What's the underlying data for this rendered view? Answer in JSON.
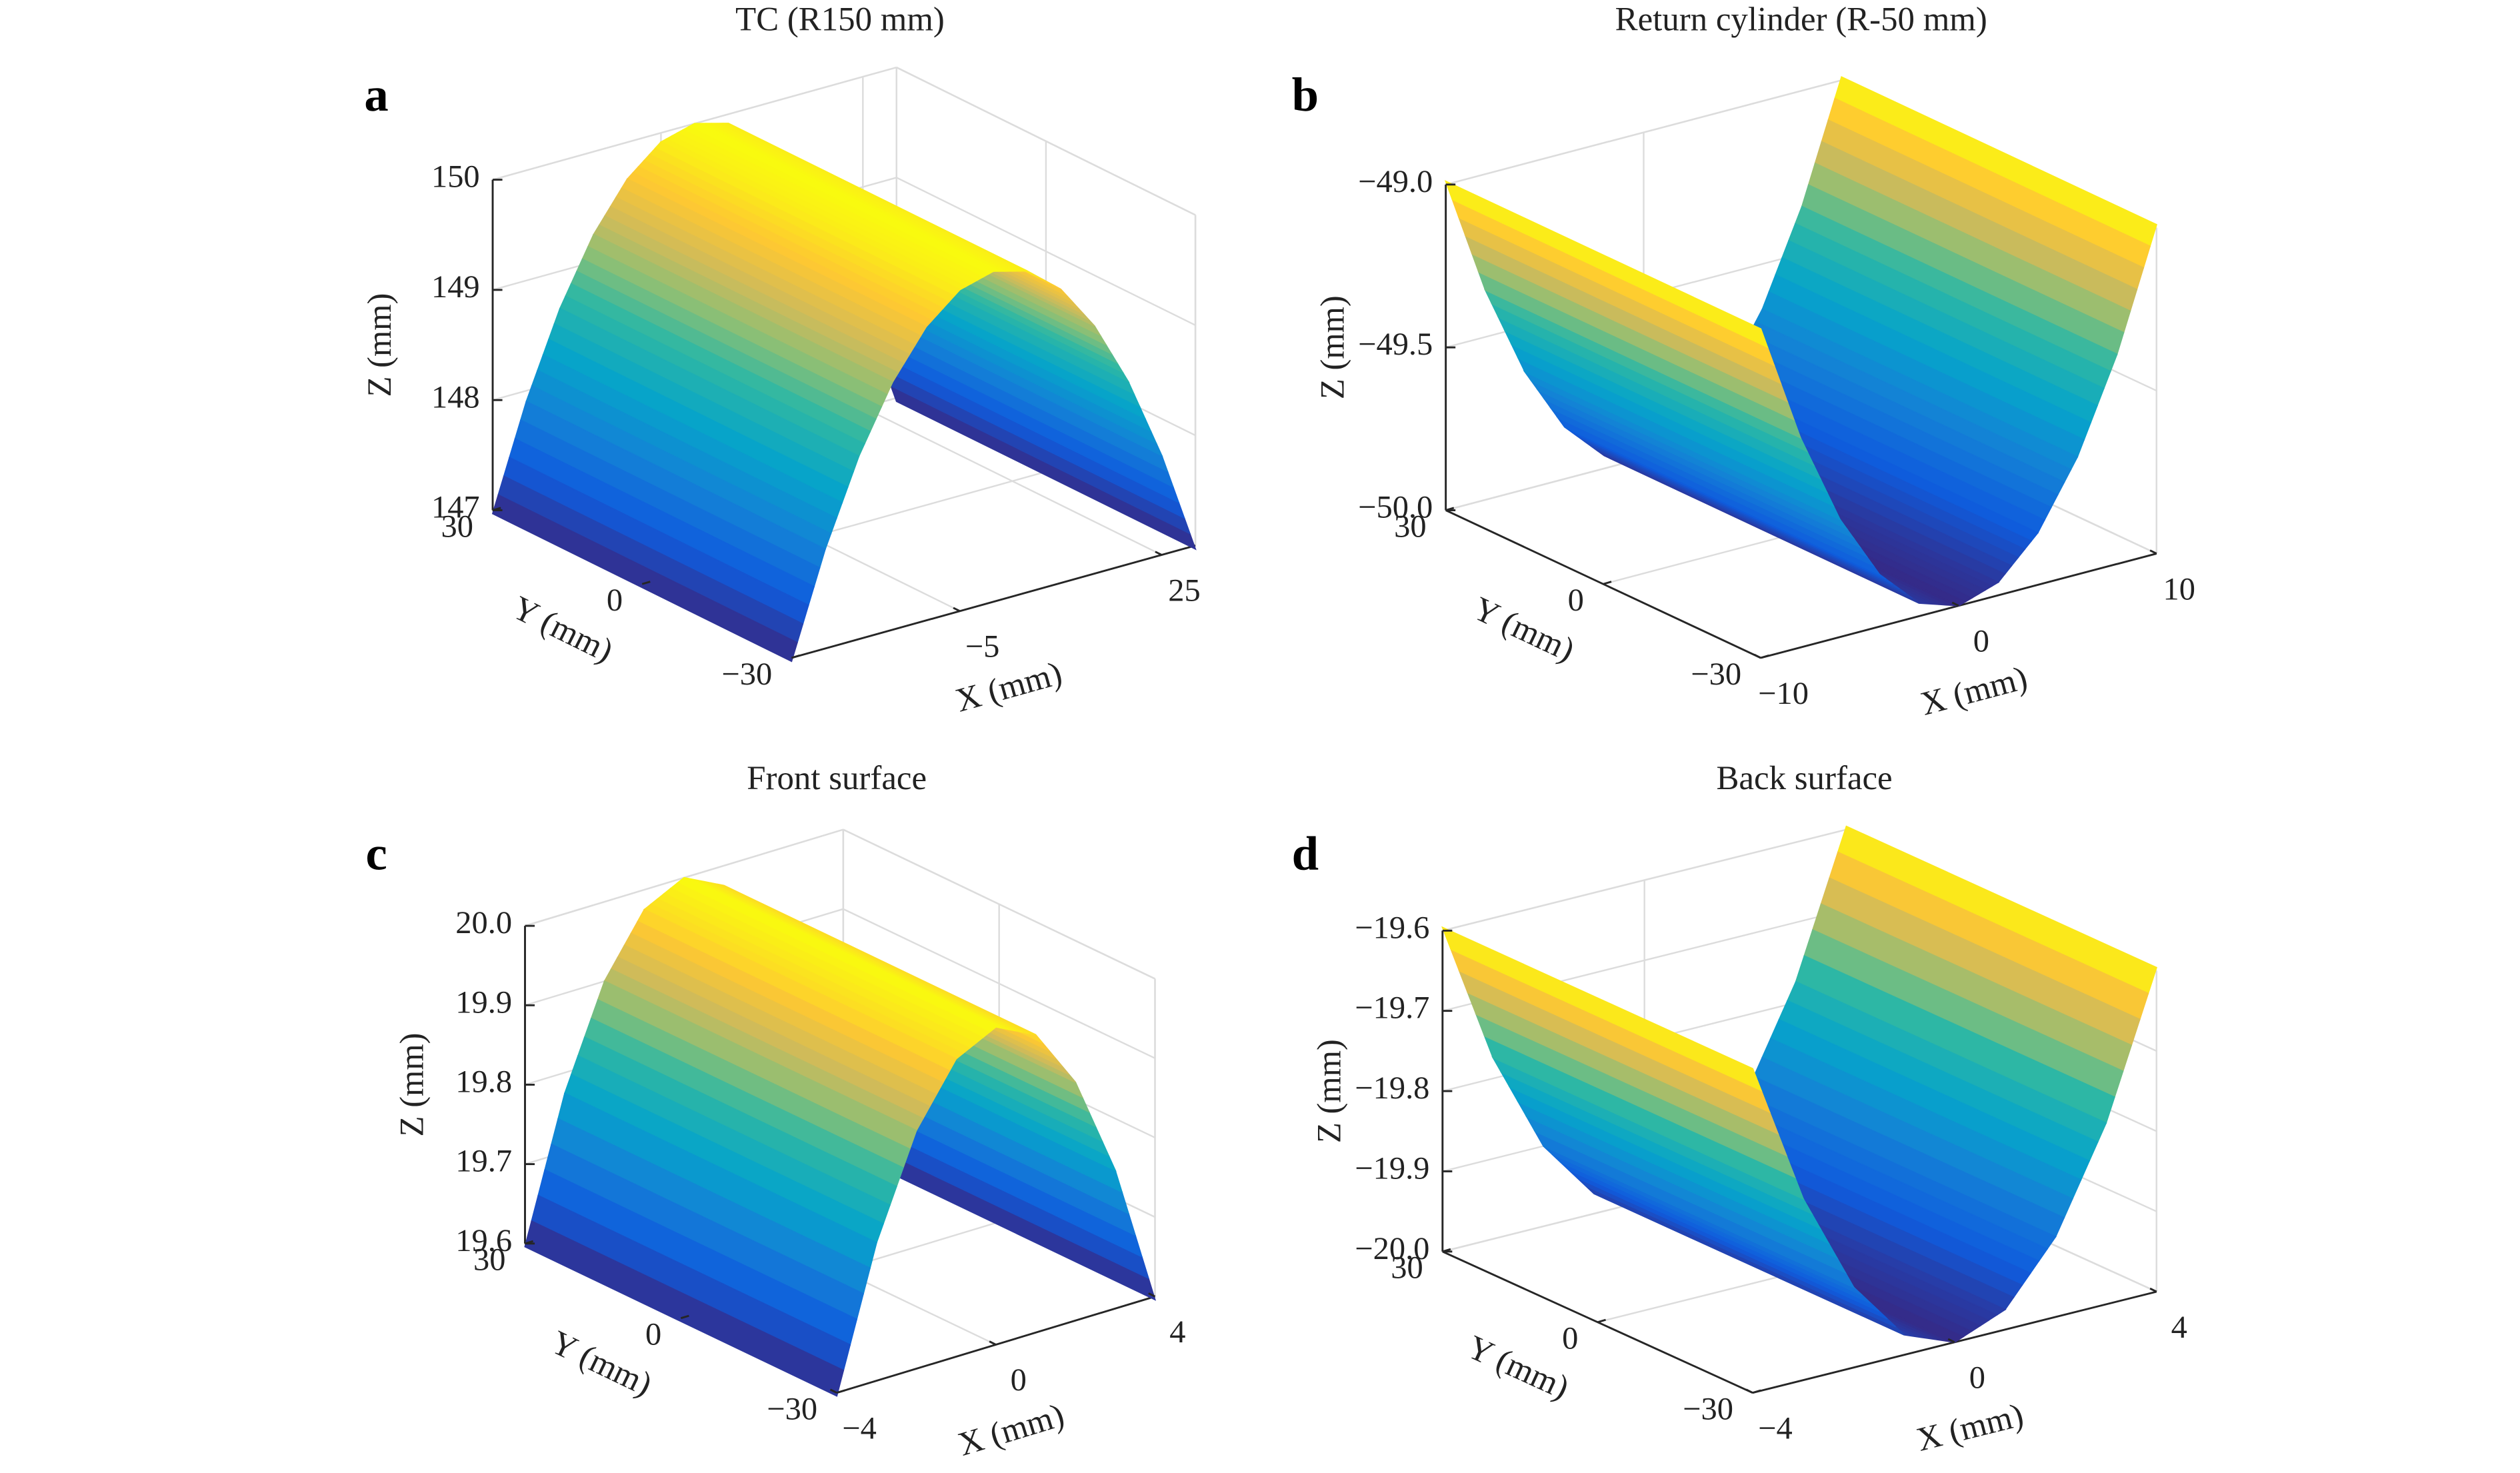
{
  "chart_data": [
    {
      "type": "surface",
      "panel": "a",
      "title": "TC (R150 mm)",
      "xlabel": "X (mm)",
      "ylabel": "Y (mm)",
      "zlabel": "Z (mm)",
      "x": [
        -30,
        -25,
        -20,
        -15,
        -10,
        -5,
        0,
        5,
        10,
        15,
        20,
        25,
        30
      ],
      "values": [
        146.969,
        147.902,
        148.661,
        149.248,
        149.666,
        149.917,
        150,
        149.917,
        149.666,
        149.248,
        148.661,
        147.902,
        146.969
      ],
      "xlim": [
        -30,
        30
      ],
      "ylim": [
        -30,
        30
      ],
      "zlim": [
        147,
        150
      ],
      "xticks": [
        {
          "value": -5,
          "label": "−5"
        },
        25
      ],
      "yticks": [
        {
          "value": -30,
          "label": "−30"
        },
        0,
        30
      ],
      "zticks": [
        147,
        148,
        149,
        150
      ],
      "colormap": "parula",
      "grid": true
    },
    {
      "type": "surface",
      "panel": "b",
      "title": "Return cylinder (R-50 mm)",
      "xlabel": "X (mm)",
      "ylabel": "Y (mm)",
      "zlabel": "Z (mm)",
      "x": [
        -10,
        -8,
        -6,
        -4,
        -2,
        0,
        2,
        4,
        6,
        8,
        10
      ],
      "values": [
        -48.99,
        -49.356,
        -49.639,
        -49.84,
        -49.96,
        -50,
        -49.96,
        -49.84,
        -49.639,
        -49.356,
        -48.99
      ],
      "xlim": [
        -10,
        10
      ],
      "ylim": [
        -30,
        30
      ],
      "zlim": [
        -50,
        -49
      ],
      "xticks": [
        {
          "value": -10,
          "label": "−10"
        },
        0,
        10
      ],
      "yticks": [
        {
          "value": -30,
          "label": "−30"
        },
        0,
        30
      ],
      "zticks": [
        {
          "value": -50,
          "label": "−50.0"
        },
        {
          "value": -49.5,
          "label": "−49.5"
        },
        {
          "value": -49,
          "label": "−49.0"
        }
      ],
      "colormap": "parula",
      "grid": true
    },
    {
      "type": "surface",
      "panel": "c",
      "title": "Front surface",
      "xlabel": "X (mm)",
      "ylabel": "Y (mm)",
      "zlabel": "Z (mm)",
      "x": [
        -4,
        -3,
        -2,
        -1,
        0,
        1,
        2,
        3,
        4
      ],
      "values": [
        19.596,
        19.774,
        19.9,
        19.975,
        20,
        19.975,
        19.9,
        19.774,
        19.596
      ],
      "xlim": [
        -4,
        4
      ],
      "ylim": [
        -30,
        30
      ],
      "zlim": [
        19.6,
        20
      ],
      "xticks": [
        {
          "value": -4,
          "label": "−4"
        },
        0,
        4
      ],
      "yticks": [
        {
          "value": -30,
          "label": "−30"
        },
        0,
        30
      ],
      "zticks": [
        19.6,
        19.7,
        19.8,
        19.9,
        {
          "value": 20,
          "label": "20.0"
        }
      ],
      "colormap": "parula",
      "grid": true
    },
    {
      "type": "surface",
      "panel": "d",
      "title": "Back surface",
      "xlabel": "X (mm)",
      "ylabel": "Y (mm)",
      "zlabel": "Z (mm)",
      "x": [
        -4,
        -3,
        -2,
        -1,
        0,
        1,
        2,
        3,
        4
      ],
      "values": [
        -19.596,
        -19.774,
        -19.9,
        -19.975,
        -20,
        -19.975,
        -19.9,
        -19.774,
        -19.596
      ],
      "xlim": [
        -4,
        4
      ],
      "ylim": [
        -30,
        30
      ],
      "zlim": [
        -20,
        -19.6
      ],
      "xticks": [
        {
          "value": -4,
          "label": "−4"
        },
        0,
        4
      ],
      "yticks": [
        {
          "value": -30,
          "label": "−30"
        },
        0,
        30
      ],
      "zticks": [
        {
          "value": -20,
          "label": "−20.0"
        },
        {
          "value": -19.9,
          "label": "−19.9"
        },
        {
          "value": -19.8,
          "label": "−19.8"
        },
        {
          "value": -19.7,
          "label": "−19.7"
        },
        {
          "value": -19.6,
          "label": "−19.6"
        }
      ],
      "colormap": "parula",
      "grid": true
    }
  ]
}
